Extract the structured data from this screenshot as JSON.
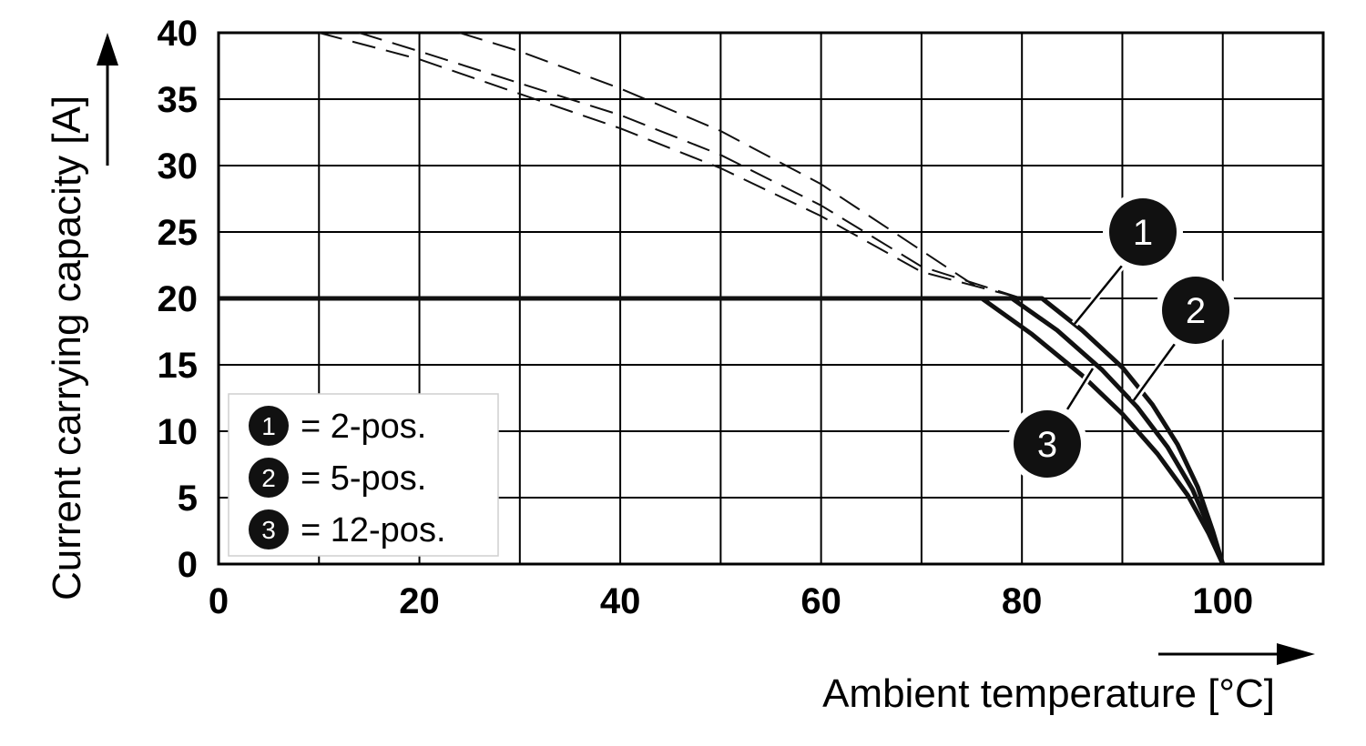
{
  "chart_data": {
    "type": "line",
    "xlabel": "Ambient temperature [°C]",
    "ylabel": "Current carrying capacity [A]",
    "xlim": [
      0,
      110
    ],
    "ylim": [
      0,
      40
    ],
    "x_ticks": [
      "0",
      "20",
      "40",
      "60",
      "80",
      "100"
    ],
    "y_ticks": [
      "0",
      "5",
      "10",
      "15",
      "20",
      "25",
      "30",
      "35",
      "40"
    ],
    "grid": true,
    "legend_position": "bottom-left",
    "legend": [
      {
        "marker": "1",
        "text": "= 2-pos."
      },
      {
        "marker": "2",
        "text": "= 5-pos."
      },
      {
        "marker": "3",
        "text": "= 12-pos."
      }
    ],
    "series": [
      {
        "marker": "1",
        "style": "solid",
        "points": [
          [
            0,
            20
          ],
          [
            82,
            20
          ],
          [
            86,
            17.6
          ],
          [
            90,
            14.8
          ],
          [
            93,
            12
          ],
          [
            95.5,
            9
          ],
          [
            97.5,
            5.8
          ],
          [
            99,
            2.5
          ],
          [
            100,
            0
          ]
        ]
      },
      {
        "marker": "2",
        "style": "solid",
        "points": [
          [
            0,
            20
          ],
          [
            79,
            20
          ],
          [
            83.5,
            17.6
          ],
          [
            88,
            14.6
          ],
          [
            91.5,
            11.8
          ],
          [
            94.5,
            8.8
          ],
          [
            97,
            5.6
          ],
          [
            98.8,
            2.5
          ],
          [
            100,
            0
          ]
        ]
      },
      {
        "marker": "3",
        "style": "solid",
        "points": [
          [
            0,
            20
          ],
          [
            76,
            20
          ],
          [
            81,
            17.3
          ],
          [
            86,
            14.2
          ],
          [
            90,
            11.3
          ],
          [
            93.5,
            8.3
          ],
          [
            96.5,
            5.2
          ],
          [
            98.6,
            2.3
          ],
          [
            100,
            0
          ]
        ]
      },
      {
        "marker": "1",
        "style": "dashed",
        "points": [
          [
            24,
            40
          ],
          [
            30,
            38.6
          ],
          [
            40,
            35.8
          ],
          [
            50,
            32.6
          ],
          [
            60,
            28.6
          ],
          [
            70,
            23.6
          ],
          [
            76,
            20.6
          ]
        ]
      },
      {
        "marker": "2",
        "style": "dashed",
        "points": [
          [
            14,
            40
          ],
          [
            20,
            38.6
          ],
          [
            30,
            36.2
          ],
          [
            40,
            33.8
          ],
          [
            50,
            30.8
          ],
          [
            60,
            27
          ],
          [
            70,
            22.4
          ],
          [
            80,
            20
          ]
        ]
      },
      {
        "marker": "3",
        "style": "dashed",
        "points": [
          [
            10,
            40
          ],
          [
            20,
            38
          ],
          [
            30,
            35.4
          ],
          [
            40,
            32.8
          ],
          [
            50,
            29.8
          ],
          [
            60,
            26.2
          ],
          [
            70,
            22
          ],
          [
            80,
            20
          ]
        ]
      }
    ],
    "callouts": [
      {
        "marker": "1"
      },
      {
        "marker": "2"
      },
      {
        "marker": "3"
      }
    ]
  }
}
